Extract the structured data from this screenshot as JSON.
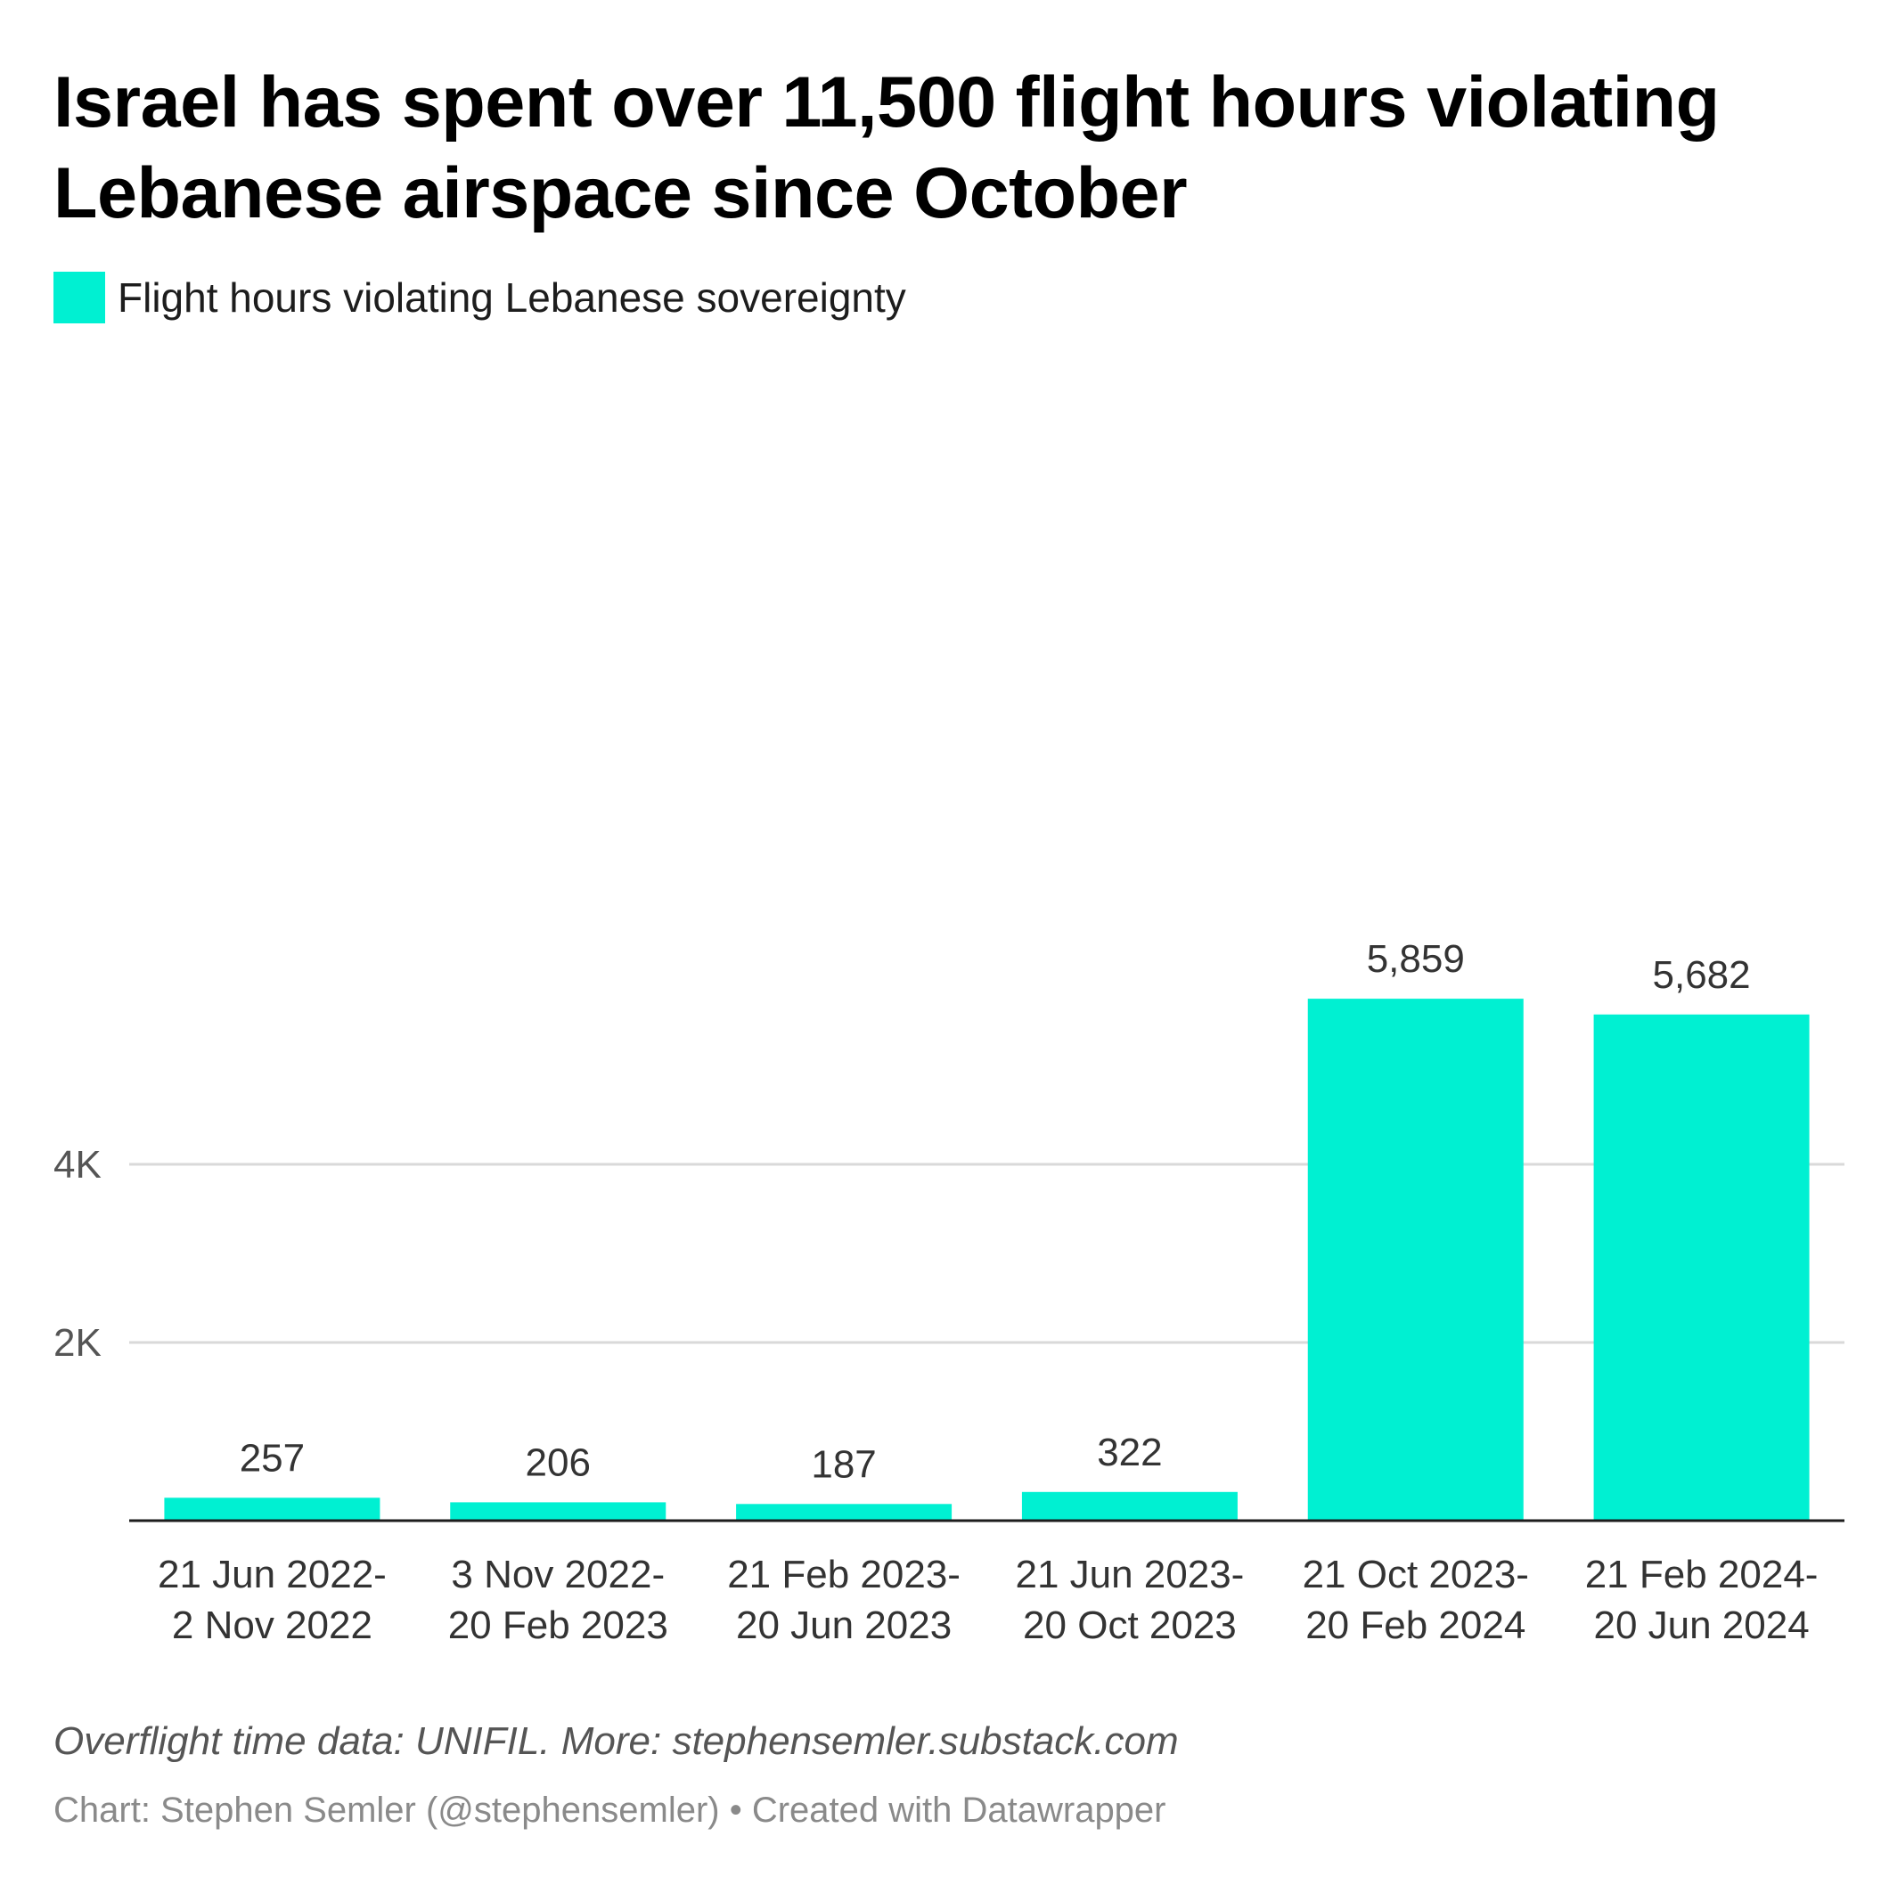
{
  "title": "Israel has spent over 11,500 flight hours violating Lebanese airspace since October",
  "notes": "Overflight time data: UNIFIL. More: stephensemler.substack.com",
  "byline": "Chart: Stephen Semler (@stephensemler) • Created with Datawrapper",
  "colors": {
    "bar": "#00f0d2",
    "grid": "#d9d9d9",
    "axis": "#1d1d1d"
  },
  "chart_data": {
    "type": "bar",
    "categories": [
      [
        "21 Jun 2022-",
        "2 Nov 2022"
      ],
      [
        "3 Nov 2022-",
        "20 Feb 2023"
      ],
      [
        "21 Feb 2023-",
        "20 Jun 2023"
      ],
      [
        "21 Jun 2023-",
        "20 Oct 2023"
      ],
      [
        "21 Oct 2023-",
        "20 Feb 2024"
      ],
      [
        "21 Feb 2024-",
        "20 Jun 2024"
      ]
    ],
    "series": [
      {
        "name": "Flight hours violating Lebanese sovereignty",
        "values": [
          257,
          206,
          187,
          322,
          5859,
          5682
        ]
      }
    ],
    "data_labels": [
      "257",
      "206",
      "187",
      "322",
      "5,859",
      "5,682"
    ],
    "y_ticks": [
      {
        "value": 2000,
        "label": "2K"
      },
      {
        "value": 4000,
        "label": "4K"
      }
    ],
    "ylim": [
      0,
      6500
    ],
    "grid": true,
    "legend": "top-left"
  }
}
